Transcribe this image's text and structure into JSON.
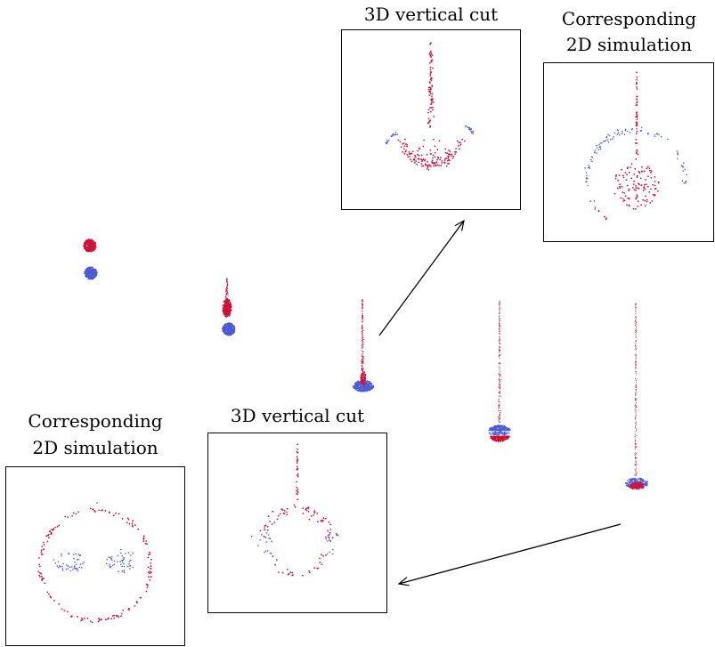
{
  "labels": {
    "cut_top": "3D vertical cut",
    "sim_top_line1": "Corresponding",
    "sim_top_line2": "2D simulation",
    "cut_bottom": "3D vertical cut",
    "sim_bottom_line1": "Corresponding",
    "sim_bottom_line2": "2D simulation"
  },
  "colors": {
    "red": "#d0103a",
    "blue": "#4a5bd6",
    "frame": "#000000"
  },
  "snapshots": [
    "stage-1",
    "stage-2",
    "stage-3",
    "stage-4",
    "stage-5"
  ]
}
